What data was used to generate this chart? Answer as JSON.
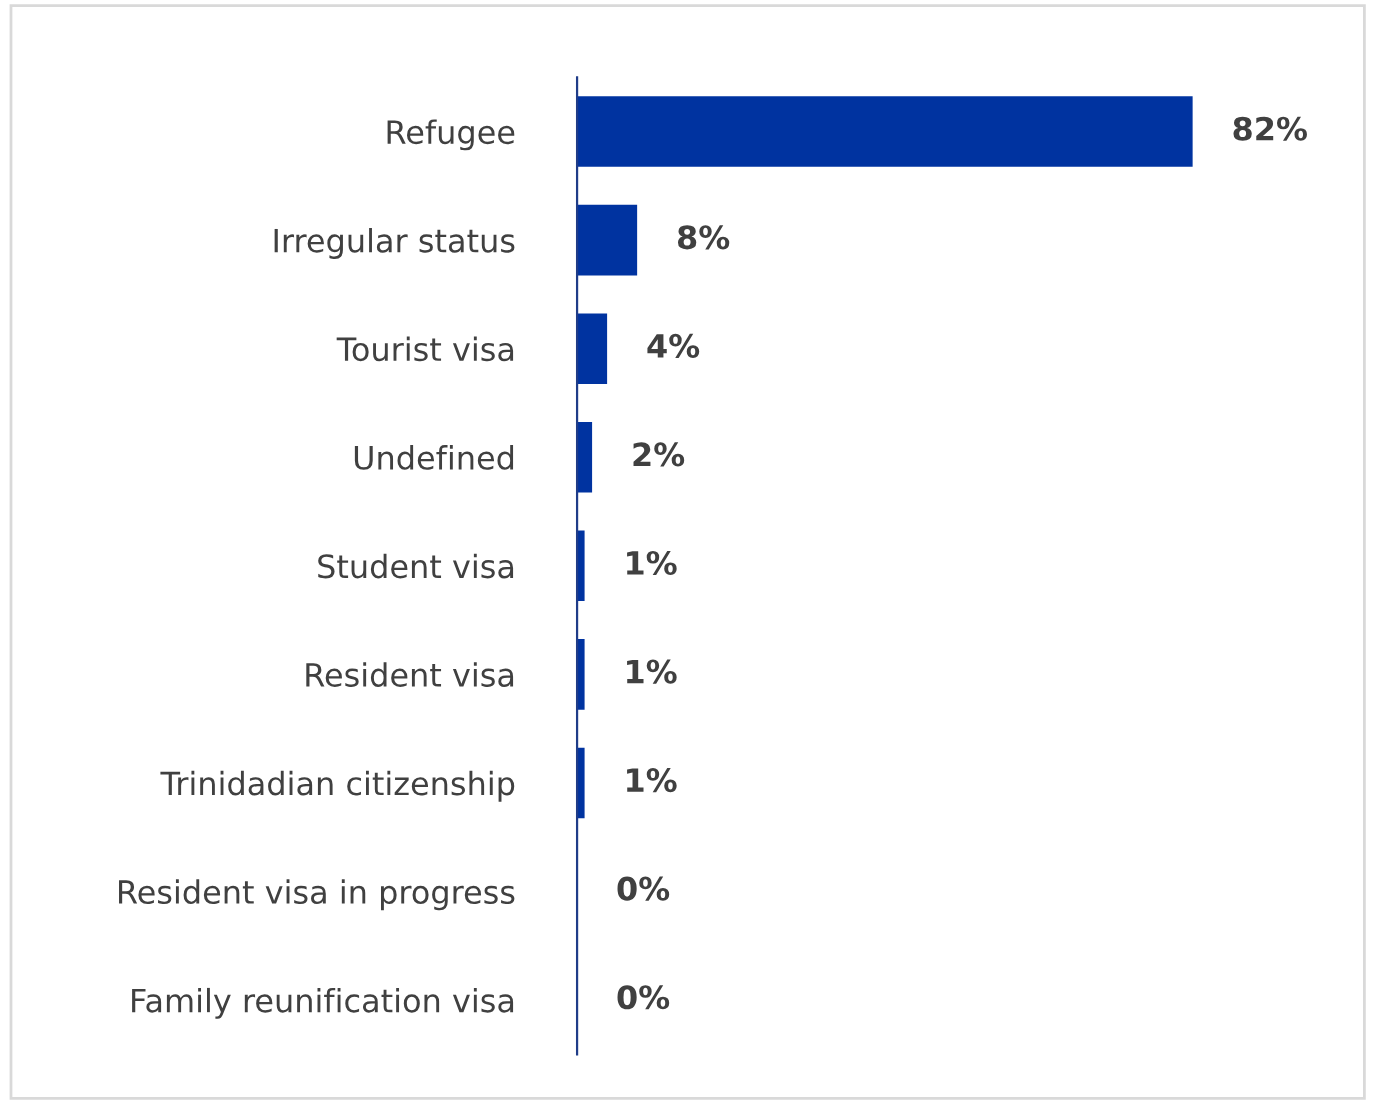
{
  "chart_data": {
    "type": "bar",
    "orientation": "horizontal",
    "categories": [
      "Refugee",
      "Irregular status",
      "Tourist visa",
      "Undefined",
      "Student visa",
      "Resident visa",
      "Trinidadian citizenship",
      "Resident visa in progress",
      "Family reunification visa"
    ],
    "values": [
      82,
      8,
      4,
      2,
      1,
      1,
      1,
      0,
      0
    ],
    "value_labels": [
      "82%",
      "8%",
      "4%",
      "2%",
      "1%",
      "1%",
      "1%",
      "0%",
      "0%"
    ],
    "color": "#0033a0",
    "grid": false,
    "legend": false,
    "tick_labels": "y"
  }
}
